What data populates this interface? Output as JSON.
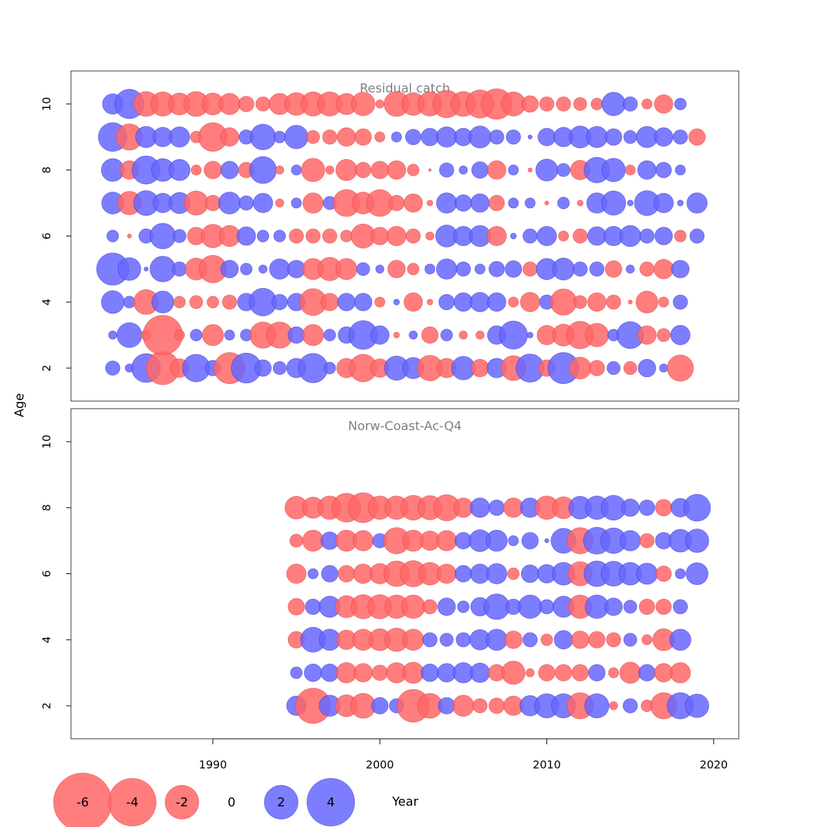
{
  "chart_data": {
    "type": "scatter",
    "description_kind": "bubble residual plot",
    "xlabel": "Year",
    "ylabel": "Age",
    "x_ticks": [
      1990,
      2000,
      2010,
      2020
    ],
    "y_ticks": [
      2,
      4,
      6,
      8,
      10
    ],
    "xlim": [
      1981.5,
      2021.5
    ],
    "ylim": [
      1,
      11
    ],
    "colors": {
      "positive": "#6666ff",
      "negative": "#ff6666",
      "positive_edge": "#3333cc",
      "negative_edge": "#e04040"
    },
    "legend": [
      {
        "label": "-6",
        "value": -6
      },
      {
        "label": "-4",
        "value": -4
      },
      {
        "label": "-2",
        "value": -2
      },
      {
        "label": "0",
        "value": 0
      },
      {
        "label": "2",
        "value": 2
      },
      {
        "label": "4",
        "value": 4
      }
    ],
    "panels": [
      {
        "title": "Residual catch",
        "year_start": 1984,
        "ages": [
          2,
          3,
          4,
          5,
          6,
          7,
          8,
          9,
          10
        ],
        "residuals": {
          "2": [
            0.6,
            0.2,
            2.4,
            -3.2,
            -1.0,
            2.2,
            0.7,
            -2.8,
            2.6,
            0.8,
            0.5,
            1.1,
            2.5,
            0.4,
            -1.1,
            -2.2,
            -1.0,
            1.7,
            1.3,
            -1.9,
            -1.1,
            1.6,
            -0.9,
            1.1,
            -1.8,
            2.3,
            -0.8,
            2.8,
            -1.4,
            -0.7,
            0.5,
            -0.5,
            0.9,
            0.2,
            -2.0
          ],
          "3": [
            0.2,
            1.8,
            -0.3,
            -4.5,
            -0.3,
            0.4,
            -1.3,
            0.3,
            0.4,
            -2.0,
            -2.0,
            0.8,
            -1.3,
            0.4,
            0.8,
            2.4,
            1.0,
            -0.1,
            0.2,
            -0.8,
            0.4,
            -0.2,
            -0.2,
            1.0,
            2.3,
            0.1,
            -1.1,
            -1.4,
            -2.2,
            -1.6,
            0.4,
            2.1,
            -1.0,
            -0.5,
            1.1
          ],
          "4": [
            1.5,
            0.4,
            -1.8,
            1.4,
            -0.4,
            -0.5,
            -0.4,
            -0.6,
            0.9,
            2.2,
            0.7,
            0.9,
            -2.1,
            -0.9,
            0.9,
            0.9,
            -0.3,
            0.1,
            -1.0,
            -0.1,
            0.7,
            1.0,
            1.1,
            1.0,
            -0.3,
            -1.1,
            0.6,
            -2.0,
            -0.5,
            -1.0,
            -0.6,
            -0.05,
            -1.4,
            -0.3,
            0.6
          ],
          "5": [
            3.0,
            1.5,
            0.05,
            1.9,
            0.6,
            -1.4,
            -2.2,
            0.9,
            0.4,
            0.2,
            1.2,
            0.9,
            -1.3,
            -1.6,
            -1.3,
            0.5,
            0.2,
            -0.9,
            -0.4,
            0.3,
            1.2,
            0.6,
            0.3,
            0.7,
            0.8,
            -0.6,
            1.3,
            1.4,
            0.6,
            0.6,
            -0.8,
            0.2,
            -0.6,
            -1.1,
            0.9
          ],
          "6": [
            0.4,
            -0.05,
            0.6,
            1.9,
            0.5,
            -0.9,
            -1.6,
            -1.3,
            1.0,
            0.4,
            0.4,
            -0.6,
            -0.6,
            -0.6,
            -0.4,
            -1.7,
            -0.9,
            -1.1,
            -0.6,
            -0.2,
            1.4,
            1.1,
            1.3,
            -1.1,
            0.1,
            0.6,
            1.1,
            -0.3,
            -0.6,
            1.0,
            1.1,
            1.3,
            0.6,
            0.9,
            -0.4,
            0.6
          ],
          "7": [
            1.4,
            -1.6,
            1.8,
            1.1,
            1.3,
            -1.7,
            -0.7,
            1.4,
            0.6,
            1.1,
            -0.2,
            0.3,
            -1.2,
            0.5,
            -2.1,
            -1.4,
            -2.1,
            -0.7,
            -1.0,
            -0.1,
            1.2,
            0.8,
            1.0,
            -0.7,
            0.3,
            0.3,
            -0.05,
            0.4,
            -0.1,
            1.2,
            1.7,
            0.1,
            1.8,
            1.1,
            0.1,
            1.2
          ],
          "8": [
            1.5,
            -1.0,
            2.3,
            1.5,
            1.3,
            -0.3,
            -0.9,
            0.9,
            -0.7,
            2.1,
            -0.2,
            0.3,
            -1.6,
            -0.2,
            -1.3,
            -0.7,
            -0.9,
            -1.0,
            -0.4,
            -0.02,
            0.6,
            0.2,
            0.8,
            -1.0,
            0.3,
            -0.05,
            1.4,
            0.5,
            -1.1,
            1.9,
            1.6,
            -0.3,
            1.0,
            0.7,
            0.3
          ],
          "9": [
            2.4,
            -2.0,
            1.3,
            1.1,
            1.2,
            -0.4,
            -2.4,
            -1.0,
            0.6,
            1.9,
            0.4,
            1.6,
            -0.5,
            -0.6,
            -1.0,
            -0.8,
            -0.3,
            0.3,
            0.7,
            0.9,
            1.2,
            0.9,
            1.4,
            0.6,
            0.6,
            0.05,
            0.9,
            1.1,
            1.4,
            1.3,
            0.8,
            0.5,
            1.3,
            1.0,
            0.6,
            -0.8
          ],
          "10": [
            1.2,
            2.5,
            -1.8,
            -1.7,
            -1.4,
            -1.8,
            -1.4,
            -1.3,
            -0.7,
            -0.6,
            -1.3,
            -1.5,
            -1.7,
            -1.7,
            -1.3,
            -1.6,
            -0.2,
            -1.8,
            -1.5,
            -1.7,
            -2.2,
            -1.8,
            -2.3,
            -2.7,
            -1.7,
            -0.8,
            -0.6,
            -0.6,
            -0.5,
            -0.4,
            1.6,
            0.6,
            -0.3,
            -1.0,
            0.4
          ]
        }
      },
      {
        "title": "Norw-Coast-Ac-Q4",
        "year_start": 1995,
        "ages": [
          2,
          3,
          4,
          5,
          6,
          7,
          8
        ],
        "residuals": {
          "2": [
            1.1,
            -3.6,
            1.3,
            -1.4,
            -1.8,
            0.8,
            0.6,
            -3.1,
            -1.8,
            0.8,
            -1.3,
            -0.6,
            -0.7,
            -1.1,
            1.2,
            1.7,
            1.7,
            -2.0,
            1.7,
            -0.2,
            0.6,
            -0.4,
            -2.0,
            2.0,
            1.6
          ],
          "3": [
            0.4,
            0.9,
            0.9,
            -1.2,
            -1.0,
            -0.7,
            -1.2,
            -1.3,
            0.9,
            1.0,
            1.2,
            1.1,
            -0.8,
            -1.6,
            -0.2,
            -0.8,
            -0.8,
            -0.8,
            0.8,
            -0.3,
            -1.3,
            0.8,
            -1.0,
            -1.2
          ],
          "4": [
            -0.8,
            1.8,
            1.3,
            -1.1,
            -1.3,
            -1.4,
            -1.6,
            -1.3,
            0.6,
            0.5,
            0.6,
            1.2,
            1.3,
            -0.9,
            0.6,
            -0.4,
            1.0,
            -0.9,
            -0.8,
            -0.6,
            0.5,
            -0.3,
            -1.4,
            1.3
          ],
          "5": [
            -0.8,
            0.7,
            1.3,
            -1.4,
            -1.7,
            -1.7,
            -1.6,
            -1.6,
            -0.6,
            0.9,
            0.4,
            1.0,
            1.9,
            0.7,
            1.6,
            0.6,
            1.3,
            -1.6,
            1.6,
            0.9,
            0.5,
            -0.7,
            -0.7,
            0.6
          ],
          "6": [
            -1.1,
            0.3,
            0.8,
            -0.8,
            -1.1,
            -1.2,
            -1.9,
            -2.0,
            -1.5,
            -1.1,
            0.8,
            1.1,
            1.2,
            -0.4,
            0.9,
            1.0,
            1.5,
            -1.7,
            1.9,
            1.8,
            1.5,
            1.3,
            -0.7,
            0.3,
            1.4
          ],
          "7": [
            -0.5,
            -1.3,
            0.9,
            -1.3,
            -1.2,
            0.6,
            -2.0,
            -1.3,
            -1.1,
            -1.2,
            0.8,
            1.4,
            1.3,
            0.3,
            0.8,
            0.05,
            1.8,
            -2.0,
            2.1,
            1.9,
            1.2,
            -0.6,
            0.8,
            1.5,
            1.6
          ],
          "8": [
            -1.5,
            -1.3,
            -1.6,
            -2.4,
            -2.6,
            -1.6,
            -1.6,
            -1.8,
            -1.7,
            -2.0,
            -1.1,
            1.1,
            0.7,
            -1.1,
            1.1,
            -1.6,
            -1.4,
            1.5,
            1.6,
            1.8,
            0.9,
            0.7,
            -0.8,
            1.0,
            2.1
          ]
        }
      }
    ]
  }
}
